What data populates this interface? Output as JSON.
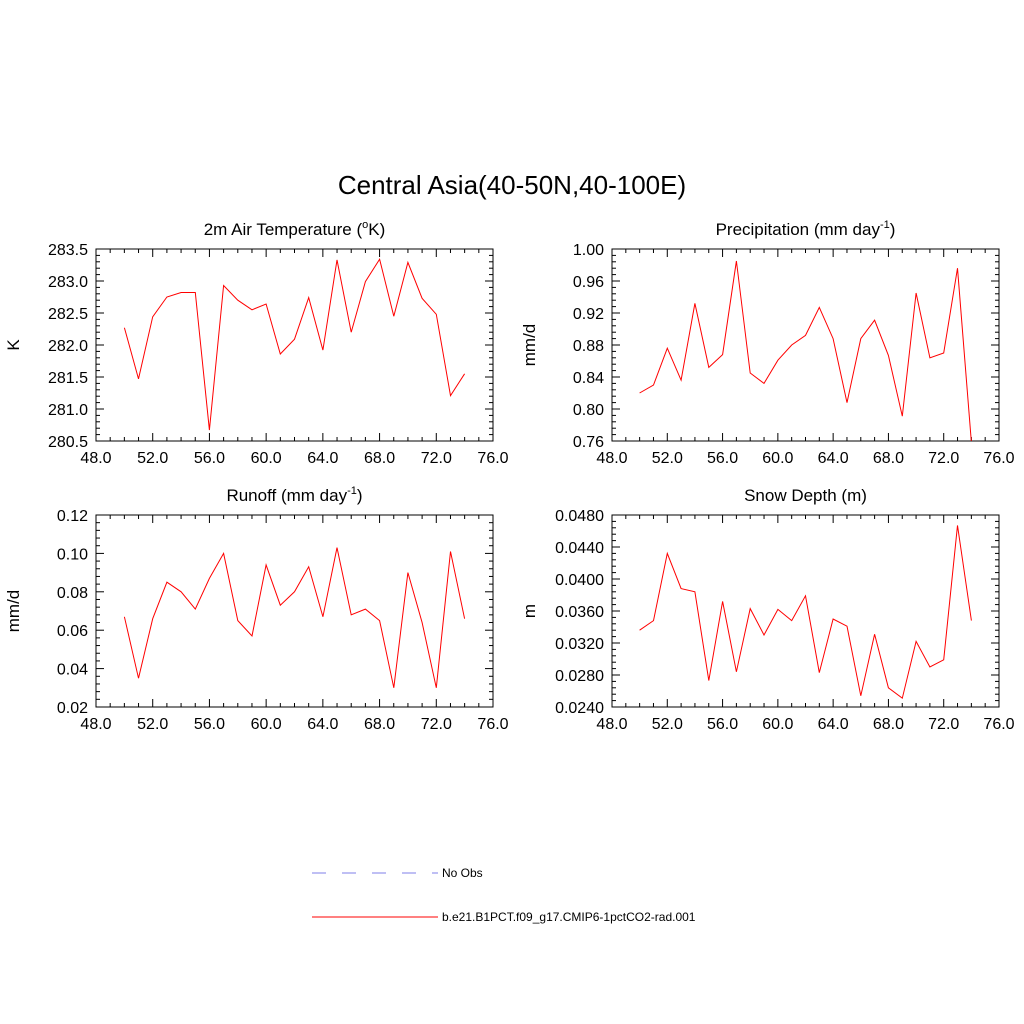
{
  "figure_title": "Central Asia(40-50N,40-100E)",
  "line_color": "#ff0000",
  "obs_color": "#9999ee",
  "legend": {
    "obs_label": "No Obs",
    "model_label": "b.e21.B1PCT.f09_g17.CMIP6-1pctCO2-rad.001"
  },
  "chart_data": [
    {
      "type": "line",
      "title": "2m Air Temperature (°K)",
      "title_main": "2m Air Temperature (",
      "title_sup": "o",
      "title_tail": "K)",
      "ylabel": "K",
      "xlim": [
        48,
        76
      ],
      "ylim": [
        280.5,
        283.5
      ],
      "xticks": [
        "48.0",
        "52.0",
        "56.0",
        "60.0",
        "64.0",
        "68.0",
        "72.0",
        "76.0"
      ],
      "yticks": [
        "283.5",
        "283.0",
        "282.5",
        "282.0",
        "281.5",
        "281.0",
        "280.5"
      ],
      "series": [
        {
          "x": [
            50,
            51,
            52,
            53,
            54,
            55,
            56,
            57,
            58,
            59,
            60,
            61,
            62,
            63,
            64,
            65,
            66,
            67,
            68,
            69,
            70,
            71,
            72,
            73,
            74
          ],
          "values": [
            282.27,
            281.47,
            282.44,
            282.75,
            282.82,
            282.82,
            280.67,
            282.93,
            282.7,
            282.55,
            282.64,
            281.86,
            282.09,
            282.74,
            281.92,
            283.33,
            282.2,
            282.99,
            283.34,
            282.45,
            283.29,
            282.73,
            282.48,
            281.21,
            281.55
          ]
        }
      ]
    },
    {
      "type": "line",
      "title": "Precipitation (mm day-1)",
      "title_main": "Precipitation (mm day",
      "title_sup": "-1",
      "title_tail": ")",
      "ylabel": "mm/d",
      "xlim": [
        48,
        76
      ],
      "ylim": [
        0.76,
        1.0
      ],
      "xticks": [
        "48.0",
        "52.0",
        "56.0",
        "60.0",
        "64.0",
        "68.0",
        "72.0",
        "76.0"
      ],
      "yticks": [
        "1.00",
        "0.96",
        "0.92",
        "0.88",
        "0.84",
        "0.80",
        "0.76"
      ],
      "series": [
        {
          "x": [
            50,
            51,
            52,
            53,
            54,
            55,
            56,
            57,
            58,
            59,
            60,
            61,
            62,
            63,
            64,
            65,
            66,
            67,
            68,
            69,
            70,
            71,
            72,
            73,
            74
          ],
          "values": [
            0.82,
            0.83,
            0.876,
            0.836,
            0.932,
            0.852,
            0.868,
            0.985,
            0.845,
            0.832,
            0.861,
            0.88,
            0.892,
            0.927,
            0.888,
            0.808,
            0.888,
            0.911,
            0.867,
            0.791,
            0.945,
            0.864,
            0.87,
            0.976,
            0.758
          ]
        }
      ]
    },
    {
      "type": "line",
      "title": "Runoff (mm day-1)",
      "title_main": "Runoff (mm day",
      "title_sup": "-1",
      "title_tail": ")",
      "ylabel": "mm/d",
      "xlim": [
        48,
        76
      ],
      "ylim": [
        0.02,
        0.12
      ],
      "xticks": [
        "48.0",
        "52.0",
        "56.0",
        "60.0",
        "64.0",
        "68.0",
        "72.0",
        "76.0"
      ],
      "yticks": [
        "0.12",
        "0.10",
        "0.08",
        "0.06",
        "0.04",
        "0.02"
      ],
      "series": [
        {
          "x": [
            50,
            51,
            52,
            53,
            54,
            55,
            56,
            57,
            58,
            59,
            60,
            61,
            62,
            63,
            64,
            65,
            66,
            67,
            68,
            69,
            70,
            71,
            72,
            73,
            74
          ],
          "values": [
            0.067,
            0.035,
            0.066,
            0.085,
            0.08,
            0.071,
            0.087,
            0.1,
            0.065,
            0.057,
            0.094,
            0.073,
            0.08,
            0.093,
            0.067,
            0.103,
            0.068,
            0.071,
            0.065,
            0.03,
            0.09,
            0.064,
            0.03,
            0.101,
            0.066
          ]
        }
      ]
    },
    {
      "type": "line",
      "title": "Snow Depth (m)",
      "title_main": "Snow Depth (m)",
      "title_sup": "",
      "title_tail": "",
      "ylabel": "m",
      "xlim": [
        48,
        76
      ],
      "ylim": [
        0.024,
        0.048
      ],
      "xticks": [
        "48.0",
        "52.0",
        "56.0",
        "60.0",
        "64.0",
        "68.0",
        "72.0",
        "76.0"
      ],
      "yticks": [
        "0.0480",
        "0.0440",
        "0.0400",
        "0.0360",
        "0.0320",
        "0.0280",
        "0.0240"
      ],
      "series": [
        {
          "x": [
            50,
            51,
            52,
            53,
            54,
            55,
            56,
            57,
            58,
            59,
            60,
            61,
            62,
            63,
            64,
            65,
            66,
            67,
            68,
            69,
            70,
            71,
            72,
            73,
            74
          ],
          "values": [
            0.0336,
            0.0348,
            0.0432,
            0.0388,
            0.0384,
            0.0273,
            0.0372,
            0.0284,
            0.0363,
            0.033,
            0.0362,
            0.0348,
            0.0379,
            0.0283,
            0.035,
            0.0341,
            0.0254,
            0.0331,
            0.0264,
            0.0251,
            0.0322,
            0.029,
            0.0299,
            0.0467,
            0.0348
          ]
        }
      ]
    }
  ]
}
